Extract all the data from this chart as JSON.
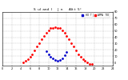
{
  "title": "S  ul  and  I      J  n      Alt t  5°",
  "bg_color": "#ffffff",
  "grid_color": "#aaaaaa",
  "ylim": [
    -5,
    80
  ],
  "xlim": [
    0,
    24
  ],
  "yticks": [
    0,
    10,
    20,
    30,
    40,
    50,
    60,
    70,
    80
  ],
  "xticks": [
    0,
    2,
    4,
    6,
    8,
    10,
    12,
    14,
    16,
    18,
    20,
    22,
    24
  ],
  "sun_altitude_x": [
    4.5,
    5.0,
    5.5,
    6.0,
    6.5,
    7.0,
    7.5,
    8.0,
    8.5,
    9.0,
    9.5,
    10.0,
    10.5,
    11.0,
    11.5,
    12.0,
    12.5,
    13.0,
    13.5,
    14.0,
    14.5,
    15.0,
    15.5,
    16.0,
    16.5,
    17.0,
    17.5,
    18.0,
    18.5,
    19.0,
    19.5
  ],
  "sun_altitude_y": [
    0,
    2,
    5,
    9,
    13,
    19,
    25,
    31,
    37,
    42,
    47,
    51,
    54,
    55,
    56,
    55,
    54,
    51,
    47,
    42,
    37,
    31,
    25,
    19,
    13,
    9,
    5,
    2,
    0,
    -2,
    -3
  ],
  "incidence_x": [
    9.5,
    10.0,
    10.5,
    11.0,
    11.5,
    12.0,
    12.5,
    13.0,
    13.5,
    14.0
  ],
  "incidence_y": [
    18,
    13,
    9,
    6,
    4,
    3,
    4,
    7,
    11,
    16
  ],
  "red_color": "#ff0000",
  "blue_color": "#0000cc",
  "marker_size": 2.0,
  "legend_blue_label": "HO  T  J",
  "legend_red_label": "APPA   TIO"
}
